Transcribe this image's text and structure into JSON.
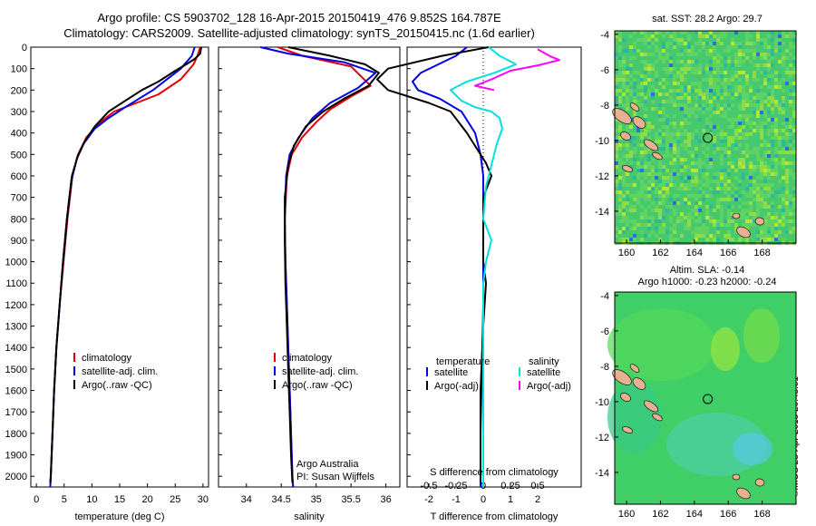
{
  "titles": {
    "line1": "Argo profile: CS 5903702_128 16-Apr-2015 20150419_476 9.852S 164.787E",
    "line2": "Climatology: CARS2009. Satellite-adjusted climatology: synTS_20150415.nc (1.6d earlier)"
  },
  "map_titles": {
    "sst": "sat. SST: 28.2 Argo: 29.7",
    "sla1": "Altim. SLA: -0.14",
    "sla2": "Argo h1000: -0.23 h2000: -0.24"
  },
  "credit": "©IMOS 23-Apr-2015 20:43:01",
  "colors": {
    "climatology": "#e00000",
    "satellite": "#0000e6",
    "argo": "#000000",
    "sat_salinity": "#00e0e0",
    "argo_salinity": "#ff00ff"
  },
  "chart_data": [
    {
      "type": "line",
      "xlabel": "temperature (deg C)",
      "ylim": [
        2050,
        0
      ],
      "xlim": [
        -1,
        31
      ],
      "xticks": [
        0,
        5,
        10,
        15,
        20,
        25,
        30
      ],
      "yticks": [
        0,
        100,
        200,
        300,
        400,
        500,
        600,
        700,
        800,
        900,
        1000,
        1100,
        1200,
        1300,
        1400,
        1500,
        1600,
        1700,
        1800,
        1900,
        2000
      ],
      "legend": [
        "climatology",
        "satellite-adj. clim.",
        "Argo(..raw -QC)"
      ],
      "series": [
        {
          "name": "climatology",
          "color": "#e00000",
          "points": [
            [
              29.5,
              0
            ],
            [
              29,
              40
            ],
            [
              28.3,
              80
            ],
            [
              26,
              150
            ],
            [
              22,
              220
            ],
            [
              18,
              260
            ],
            [
              14,
              300
            ],
            [
              11.5,
              350
            ],
            [
              9,
              420
            ],
            [
              7.5,
              500
            ],
            [
              6.5,
              600
            ],
            [
              5.6,
              800
            ],
            [
              4.9,
              1000
            ],
            [
              4.2,
              1200
            ],
            [
              3.6,
              1400
            ],
            [
              3.2,
              1600
            ],
            [
              2.9,
              1800
            ],
            [
              2.6,
              2000
            ],
            [
              2.5,
              2050
            ]
          ]
        },
        {
          "name": "satellite-adj. clim.",
          "color": "#0000e6",
          "points": [
            [
              28.5,
              0
            ],
            [
              28,
              40
            ],
            [
              26,
              100
            ],
            [
              21,
              200
            ],
            [
              16,
              280
            ],
            [
              13,
              330
            ],
            [
              10.5,
              380
            ],
            [
              8.5,
              450
            ],
            [
              7.3,
              520
            ],
            [
              6.3,
              620
            ],
            [
              5.5,
              800
            ],
            [
              4.8,
              1000
            ],
            [
              4.2,
              1200
            ],
            [
              3.6,
              1400
            ],
            [
              3.2,
              1600
            ],
            [
              2.9,
              1800
            ],
            [
              2.6,
              2000
            ],
            [
              2.5,
              2050
            ]
          ]
        },
        {
          "name": "Argo(..raw -QC)",
          "color": "#000000",
          "points": [
            [
              29.7,
              0
            ],
            [
              29.5,
              30
            ],
            [
              28.5,
              55
            ],
            [
              27,
              80
            ],
            [
              25,
              110
            ],
            [
              22,
              160
            ],
            [
              19,
              200
            ],
            [
              16,
              250
            ],
            [
              13,
              300
            ],
            [
              10.5,
              370
            ],
            [
              8.7,
              440
            ],
            [
              7.4,
              510
            ],
            [
              6.4,
              600
            ],
            [
              5.5,
              800
            ],
            [
              4.8,
              1000
            ],
            [
              4.2,
              1200
            ],
            [
              3.6,
              1400
            ],
            [
              3.2,
              1600
            ],
            [
              2.9,
              1800
            ],
            [
              2.6,
              2000
            ],
            [
              2.5,
              2030
            ]
          ]
        }
      ]
    },
    {
      "type": "line",
      "xlabel": "salinity",
      "ylim": [
        2050,
        0
      ],
      "xlim": [
        33.6,
        36.2
      ],
      "xticks": [
        34,
        34.5,
        35,
        35.5,
        36
      ],
      "legend": [
        "climatology",
        "satellite-adj. clim.",
        "Argo(..raw -QC)"
      ],
      "annotation": [
        "Argo Australia",
        "PI: Susan Wijffels"
      ],
      "series": [
        {
          "name": "climatology",
          "color": "#e00000",
          "points": [
            [
              34.45,
              0
            ],
            [
              34.8,
              40
            ],
            [
              35.5,
              90
            ],
            [
              35.78,
              180
            ],
            [
              35.5,
              230
            ],
            [
              35.2,
              290
            ],
            [
              35.0,
              350
            ],
            [
              34.8,
              420
            ],
            [
              34.65,
              500
            ],
            [
              34.58,
              600
            ],
            [
              34.55,
              800
            ],
            [
              34.56,
              1000
            ],
            [
              34.58,
              1200
            ],
            [
              34.6,
              1400
            ],
            [
              34.62,
              1600
            ],
            [
              34.64,
              1800
            ],
            [
              34.66,
              2000
            ],
            [
              34.67,
              2050
            ]
          ]
        },
        {
          "name": "satellite-adj. clim.",
          "color": "#0000e6",
          "points": [
            [
              34.2,
              0
            ],
            [
              34.6,
              30
            ],
            [
              35.4,
              70
            ],
            [
              35.85,
              120
            ],
            [
              35.6,
              190
            ],
            [
              35.2,
              260
            ],
            [
              34.95,
              330
            ],
            [
              34.75,
              420
            ],
            [
              34.62,
              500
            ],
            [
              34.57,
              600
            ],
            [
              34.55,
              800
            ],
            [
              34.56,
              1000
            ],
            [
              34.58,
              1200
            ],
            [
              34.6,
              1400
            ],
            [
              34.62,
              1600
            ],
            [
              34.64,
              1800
            ],
            [
              34.66,
              2000
            ],
            [
              34.67,
              2050
            ]
          ]
        },
        {
          "name": "Argo(..raw -QC)",
          "color": "#000000",
          "points": [
            [
              34.6,
              0
            ],
            [
              35.2,
              40
            ],
            [
              35.7,
              80
            ],
            [
              35.9,
              120
            ],
            [
              35.75,
              180
            ],
            [
              35.4,
              240
            ],
            [
              35.1,
              300
            ],
            [
              34.85,
              370
            ],
            [
              34.68,
              460
            ],
            [
              34.6,
              550
            ],
            [
              34.55,
              700
            ],
            [
              34.55,
              900
            ],
            [
              34.56,
              1100
            ],
            [
              34.58,
              1300
            ],
            [
              34.6,
              1500
            ],
            [
              34.62,
              1700
            ],
            [
              34.64,
              1900
            ],
            [
              34.66,
              2030
            ]
          ]
        }
      ]
    },
    {
      "type": "line",
      "xlabel": "T difference from climatology",
      "top_label": "S difference from climatology",
      "ylim": [
        2050,
        0
      ],
      "xlim": [
        -2.8,
        3.6
      ],
      "xticks": [
        -2,
        -1,
        0,
        1,
        2
      ],
      "xticks_top": [
        "-0.5",
        "-0.25",
        "0",
        "0.25",
        "0.5"
      ],
      "legend_left": {
        "heading": "temperature",
        "items": [
          "satellite",
          "Argo(-adj)"
        ]
      },
      "legend_right": {
        "heading": "salinity",
        "items": [
          "satellite",
          "Argo(-adj)"
        ]
      },
      "series": [
        {
          "name": "temperature satellite",
          "color": "#0000e6",
          "points": [
            [
              -0.6,
              0
            ],
            [
              -1.0,
              40
            ],
            [
              -2.3,
              120
            ],
            [
              -2.6,
              160
            ],
            [
              -2.4,
              200
            ],
            [
              -1.6,
              240
            ],
            [
              -0.8,
              300
            ],
            [
              -0.3,
              400
            ],
            [
              -0.1,
              500
            ],
            [
              0,
              600
            ],
            [
              0,
              900
            ],
            [
              0,
              1200
            ],
            [
              -0.05,
              1500
            ],
            [
              -0.1,
              1800
            ],
            [
              -0.1,
              2050
            ]
          ]
        },
        {
          "name": "temperature Argo(-adj)",
          "color": "#000000",
          "points": [
            [
              0.2,
              0
            ],
            [
              -1.5,
              40
            ],
            [
              -3.5,
              100
            ],
            [
              -3.9,
              150
            ],
            [
              -3.5,
              200
            ],
            [
              -2.0,
              260
            ],
            [
              -1.2,
              300
            ],
            [
              -0.6,
              400
            ],
            [
              -0.2,
              480
            ],
            [
              0.1,
              540
            ],
            [
              0.3,
              600
            ],
            [
              0,
              700
            ],
            [
              0,
              1000
            ],
            [
              0.1,
              1100
            ],
            [
              0,
              1300
            ],
            [
              -0.1,
              1600
            ],
            [
              -0.1,
              2030
            ]
          ]
        },
        {
          "name": "salinity satellite",
          "color": "#00e0e0",
          "points": [
            [
              0.2,
              0
            ],
            [
              0.6,
              40
            ],
            [
              1.2,
              80
            ],
            [
              0.4,
              120
            ],
            [
              -0.6,
              160
            ],
            [
              -1.2,
              200
            ],
            [
              -0.8,
              250
            ],
            [
              -0.3,
              280
            ],
            [
              0.3,
              300
            ],
            [
              0.6,
              330
            ],
            [
              0.7,
              380
            ],
            [
              0.5,
              450
            ],
            [
              0.3,
              550
            ],
            [
              0.1,
              650
            ],
            [
              0,
              800
            ],
            [
              0.3,
              900
            ],
            [
              0.1,
              1000
            ],
            [
              0,
              1100
            ],
            [
              0,
              1400
            ],
            [
              0,
              2050
            ]
          ]
        },
        {
          "name": "salinity Argo(-adj)",
          "color": "#ff00ff",
          "points": [
            [
              2.0,
              10
            ],
            [
              2.5,
              45
            ],
            [
              2.8,
              60
            ],
            [
              2.0,
              85
            ],
            [
              1.0,
              110
            ],
            [
              0.3,
              150
            ],
            [
              -0.3,
              180
            ],
            [
              0.4,
              200
            ]
          ]
        }
      ]
    }
  ],
  "maps": [
    {
      "id": "sst",
      "xticks": [
        "160",
        "162",
        "164",
        "166",
        "168"
      ],
      "yticks": [
        "-4",
        "-6",
        "-8",
        "-10",
        "-12",
        "-14"
      ],
      "lonlim": [
        159.3,
        170
      ],
      "latlim": [
        -15.8,
        -3.8
      ],
      "profile_point": [
        164.79,
        -9.85
      ]
    },
    {
      "id": "sla",
      "xticks": [
        "160",
        "162",
        "164",
        "166",
        "168"
      ],
      "yticks": [
        "-4",
        "-6",
        "-8",
        "-10",
        "-12",
        "-14"
      ],
      "lonlim": [
        159.3,
        170
      ],
      "latlim": [
        -15.8,
        -3.8
      ],
      "profile_point": [
        164.79,
        -9.85
      ]
    }
  ]
}
